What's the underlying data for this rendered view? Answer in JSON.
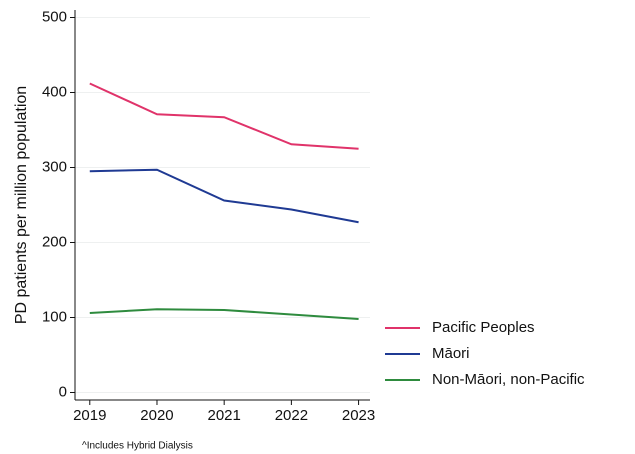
{
  "chart_data": {
    "type": "line",
    "y_label": "PD patients per million population",
    "note": "^Includes Hybrid Dialysis",
    "x": [
      2019,
      2020,
      2021,
      2022,
      2023
    ],
    "series": [
      {
        "name": "Pacific Peoples",
        "color": "#e0336a",
        "values": [
          412,
          371,
          367,
          331,
          325
        ]
      },
      {
        "name": "Māori",
        "color": "#1f3a93",
        "values": [
          295,
          297,
          256,
          244,
          227
        ]
      },
      {
        "name": "Non-Māori, non-Pacific",
        "color": "#2e8b3e",
        "values": [
          106,
          111,
          110,
          104,
          98
        ]
      }
    ],
    "xlim": [
      2018.78,
      2023.17
    ],
    "xticks": [
      2019,
      2020,
      2021,
      2022,
      2023
    ],
    "ylim": [
      -10,
      510
    ],
    "yticks": [
      0,
      100,
      200,
      300,
      400,
      500
    ],
    "grid": true,
    "legend": "right"
  }
}
